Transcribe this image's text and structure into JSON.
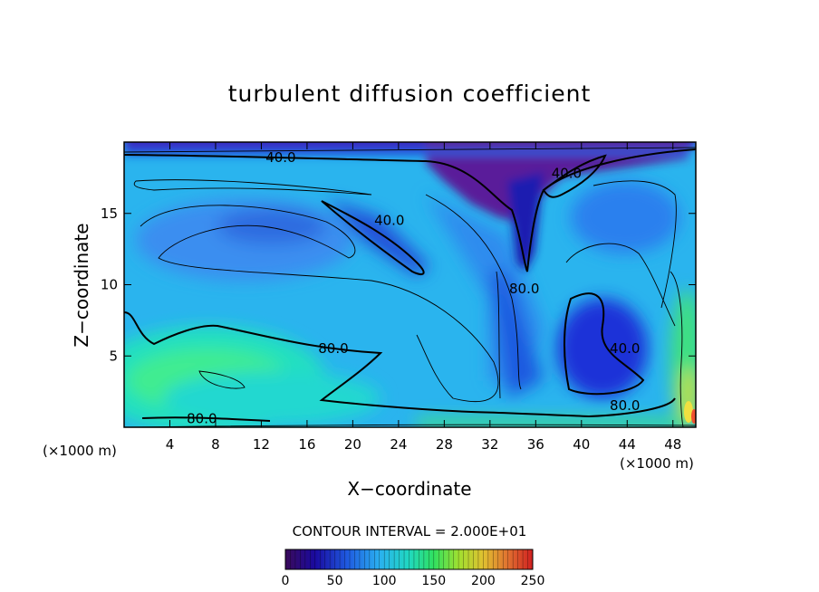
{
  "chart_data": {
    "type": "heatmap",
    "title": "turbulent diffusion coefficient",
    "xlabel": "X−coordinate",
    "ylabel": "Z−coordinate",
    "x_unit": "(×1000 m)",
    "z_unit": "(×1000 m)",
    "xlim": [
      0,
      50
    ],
    "ylim": [
      0,
      20
    ],
    "x_ticks": [
      4,
      8,
      12,
      16,
      20,
      24,
      28,
      32,
      36,
      40,
      44,
      48
    ],
    "y_ticks": [
      5,
      10,
      15
    ],
    "contour_interval_text": "CONTOUR INTERVAL = 2.000E+01",
    "colorbar": {
      "min": 0,
      "max": 250,
      "ticks": [
        0,
        50,
        100,
        150,
        200,
        250
      ],
      "colors": [
        "#5a1a8c",
        "#1f1fd6",
        "#2b7bf0",
        "#3ab8f0",
        "#20e0c8",
        "#40f080",
        "#a0f040",
        "#f0f040",
        "#f0a030",
        "#f03020"
      ]
    },
    "contour_labels": [
      {
        "text": "40.0",
        "x": 13.7,
        "z": 18.6
      },
      {
        "text": "40.0",
        "x": 23.2,
        "z": 14.2
      },
      {
        "text": "40.0",
        "x": 38.7,
        "z": 17.5
      },
      {
        "text": "80.0",
        "x": 35.0,
        "z": 9.4
      },
      {
        "text": "40.0",
        "x": 43.8,
        "z": 5.2
      },
      {
        "text": "80.0",
        "x": 18.3,
        "z": 5.2
      },
      {
        "text": "80.0",
        "x": 43.8,
        "z": 1.2
      },
      {
        "text": "80.0",
        "x": 6.8,
        "z": 0.3
      }
    ]
  }
}
